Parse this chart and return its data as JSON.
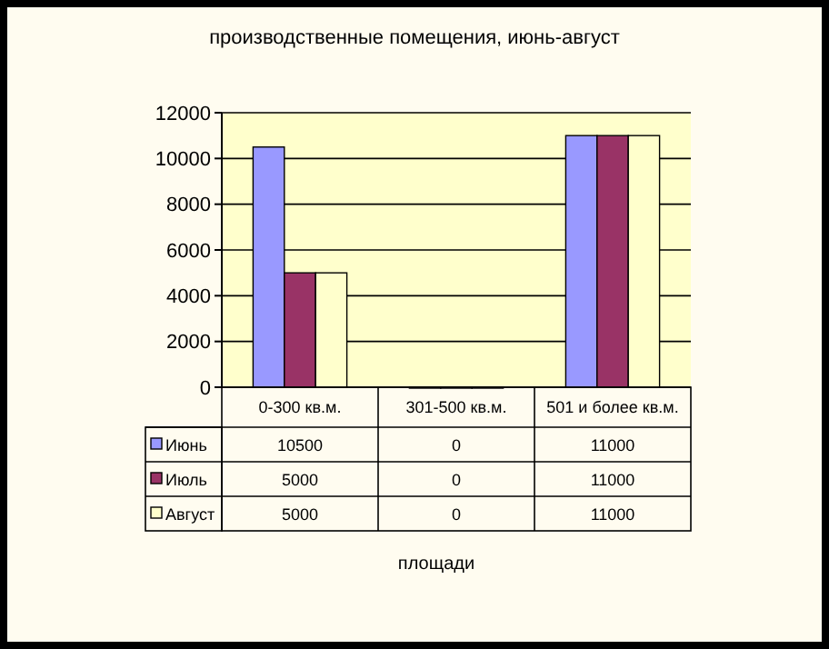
{
  "chart_data": {
    "type": "bar",
    "title": "производственные помещения, июнь-август",
    "annotations": [
      "площади"
    ],
    "categories": [
      "0-300 кв.м.",
      "301-500 кв.м.",
      "501 и более кв.м."
    ],
    "series": [
      {
        "name": "Июнь",
        "color": "#9999ff",
        "values": [
          10500,
          0,
          11000
        ]
      },
      {
        "name": "Июль",
        "color": "#993366",
        "values": [
          5000,
          0,
          11000
        ]
      },
      {
        "name": "Август",
        "color": "#ffffcc",
        "values": [
          5000,
          0,
          11000
        ]
      }
    ],
    "ylim": [
      0,
      12000
    ],
    "yticks": [
      0,
      2000,
      4000,
      6000,
      8000,
      10000,
      12000
    ],
    "grid": "y",
    "data_labels": true,
    "legend": "bottom"
  }
}
